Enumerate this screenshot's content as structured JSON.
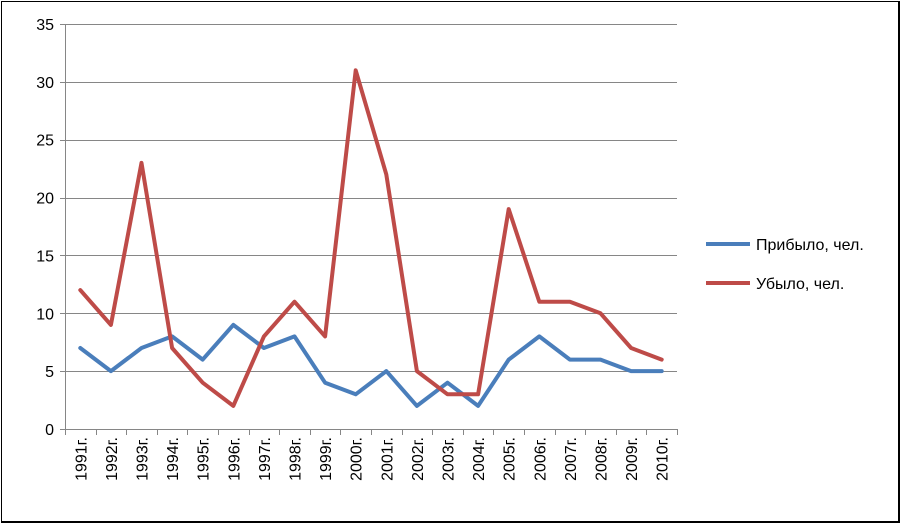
{
  "chart_data": {
    "type": "line",
    "categories": [
      "1991г.",
      "1992г.",
      "1993г.",
      "1994г.",
      "1995г.",
      "1996г.",
      "1997г.",
      "1998г.",
      "1999г.",
      "2000г.",
      "2001г.",
      "2002г.",
      "2003г.",
      "2004г.",
      "2005г.",
      "2006г.",
      "2007г.",
      "2008г.",
      "2009г.",
      "2010г."
    ],
    "series": [
      {
        "name": "Прибыло, чел.",
        "color": "#4a7ebb",
        "values": [
          7,
          5,
          7,
          8,
          6,
          9,
          7,
          8,
          4,
          3,
          5,
          2,
          4,
          2,
          6,
          8,
          6,
          6,
          5,
          5
        ]
      },
      {
        "name": "Убыло, чел.",
        "color": "#be4b48",
        "values": [
          12,
          9,
          23,
          7,
          4,
          2,
          8,
          11,
          8,
          31,
          22,
          5,
          3,
          3,
          19,
          11,
          11,
          10,
          7,
          6
        ]
      }
    ],
    "ylim": [
      0,
      35
    ],
    "yticks": [
      "0",
      "5",
      "10",
      "15",
      "20",
      "25",
      "30",
      "35"
    ],
    "grid": true,
    "legend_position": "right"
  }
}
